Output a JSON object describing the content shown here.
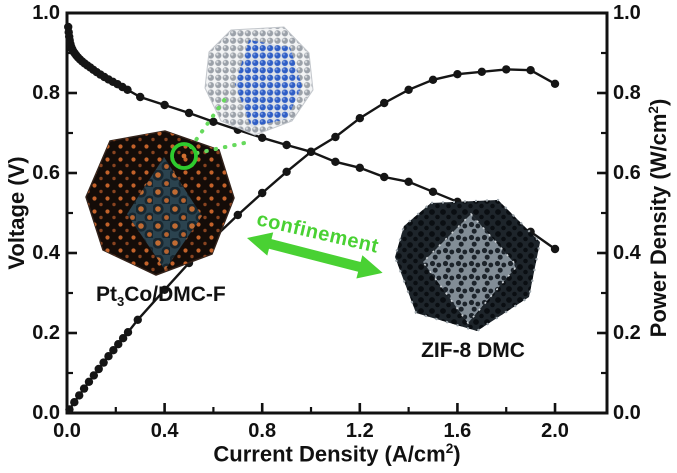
{
  "figure": {
    "background": "#ffffff"
  },
  "chart_data": {
    "type": "line",
    "title": "",
    "xlabel": {
      "pre": "Current Density (A/cm",
      "sup": "2",
      "post": ")"
    },
    "ylabel_left": "Voltage (V)",
    "ylabel_right": {
      "pre": "Power Density (W/cm",
      "sup": "2",
      "post": ")"
    },
    "xlim": [
      0,
      2.213
    ],
    "ylim_left": [
      0,
      1.0
    ],
    "ylim_right": [
      0,
      1.0
    ],
    "grid": false,
    "legend": "none",
    "frame_color": "#111111",
    "x_ticks": {
      "values": [
        0,
        0.4,
        0.8,
        1.2,
        1.6,
        2.0
      ],
      "labels": [
        "0.0",
        "0.4",
        "0.8",
        "1.2",
        "1.6",
        "2.0"
      ]
    },
    "x_minor_ticks": [
      0.2,
      0.6,
      1.0,
      1.4,
      1.8
    ],
    "y_ticks_left": {
      "values": [
        0,
        0.2,
        0.4,
        0.6,
        0.8,
        1.0
      ],
      "labels": [
        "0.0",
        "0.2",
        "0.4",
        "0.6",
        "0.8",
        "1.0"
      ]
    },
    "y_ticks_right": {
      "values": [
        0,
        0.2,
        0.4,
        0.6,
        0.8,
        1.0
      ],
      "labels": [
        "0.0",
        "0.2",
        "0.4",
        "0.6",
        "0.8",
        "1.0"
      ]
    },
    "y_minor_ticks": [
      0.1,
      0.3,
      0.5,
      0.7,
      0.9
    ],
    "series": [
      {
        "name": "polarization-voltage",
        "axis": "left",
        "color": "#151515",
        "marker": "circle",
        "points": [
          [
            0.005,
            0.965
          ],
          [
            0.007,
            0.952
          ],
          [
            0.009,
            0.941
          ],
          [
            0.011,
            0.932
          ],
          [
            0.014,
            0.923
          ],
          [
            0.017,
            0.916
          ],
          [
            0.021,
            0.91
          ],
          [
            0.026,
            0.904
          ],
          [
            0.032,
            0.899
          ],
          [
            0.038,
            0.894
          ],
          [
            0.045,
            0.889
          ],
          [
            0.053,
            0.884
          ],
          [
            0.062,
            0.879
          ],
          [
            0.072,
            0.874
          ],
          [
            0.083,
            0.869
          ],
          [
            0.095,
            0.864
          ],
          [
            0.108,
            0.858
          ],
          [
            0.122,
            0.852
          ],
          [
            0.137,
            0.846
          ],
          [
            0.153,
            0.84
          ],
          [
            0.17,
            0.834
          ],
          [
            0.188,
            0.828
          ],
          [
            0.207,
            0.822
          ],
          [
            0.227,
            0.815
          ],
          [
            0.248,
            0.808
          ],
          [
            0.3,
            0.79
          ],
          [
            0.4,
            0.77
          ],
          [
            0.5,
            0.75
          ],
          [
            0.6,
            0.728
          ],
          [
            0.7,
            0.708
          ],
          [
            0.8,
            0.688
          ],
          [
            0.9,
            0.67
          ],
          [
            1.0,
            0.653
          ],
          [
            1.1,
            0.628
          ],
          [
            1.2,
            0.613
          ],
          [
            1.3,
            0.59
          ],
          [
            1.4,
            0.578
          ],
          [
            1.5,
            0.553
          ],
          [
            1.6,
            0.528
          ],
          [
            1.7,
            0.505
          ],
          [
            1.8,
            0.48
          ],
          [
            1.9,
            0.453
          ],
          [
            2.0,
            0.41
          ]
        ]
      },
      {
        "name": "power-density",
        "axis": "right",
        "color": "#151515",
        "marker": "circle",
        "points": [
          [
            0.01,
            0.009
          ],
          [
            0.03,
            0.027
          ],
          [
            0.05,
            0.044
          ],
          [
            0.07,
            0.061
          ],
          [
            0.09,
            0.078
          ],
          [
            0.11,
            0.094
          ],
          [
            0.13,
            0.11
          ],
          [
            0.15,
            0.126
          ],
          [
            0.17,
            0.142
          ],
          [
            0.19,
            0.157
          ],
          [
            0.21,
            0.172
          ],
          [
            0.23,
            0.187
          ],
          [
            0.25,
            0.202
          ],
          [
            0.29,
            0.233
          ],
          [
            0.4,
            0.308
          ],
          [
            0.5,
            0.375
          ],
          [
            0.6,
            0.437
          ],
          [
            0.7,
            0.495
          ],
          [
            0.8,
            0.55
          ],
          [
            0.9,
            0.603
          ],
          [
            1.0,
            0.653
          ],
          [
            1.1,
            0.69
          ],
          [
            1.2,
            0.737
          ],
          [
            1.3,
            0.775
          ],
          [
            1.4,
            0.808
          ],
          [
            1.5,
            0.833
          ],
          [
            1.6,
            0.847
          ],
          [
            1.7,
            0.853
          ],
          [
            1.8,
            0.859
          ],
          [
            1.9,
            0.857
          ],
          [
            2.0,
            0.823
          ]
        ]
      }
    ]
  },
  "annotations": {
    "catalyst_label": {
      "pre": "Pt",
      "sub": "3",
      "post": "Co/DMC-F"
    },
    "zif_label": "ZIF-8 DMC",
    "confinement_label": "confinement",
    "accent_green": "#49d133",
    "callout_green": "#66d95c",
    "ring_green": "#2ecb2e"
  }
}
